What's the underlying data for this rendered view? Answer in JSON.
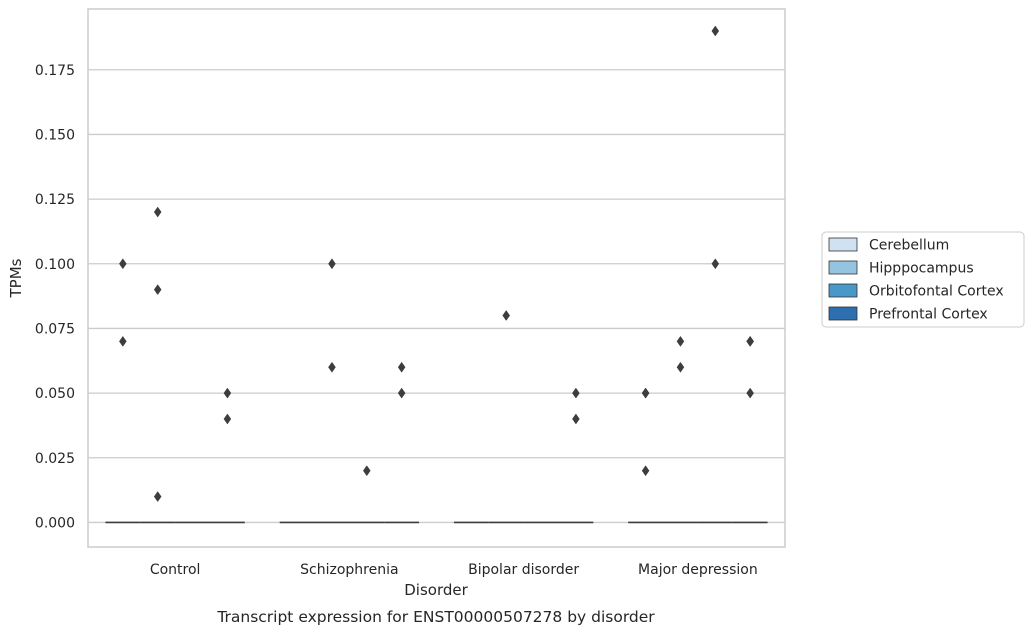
{
  "chart_data": {
    "type": "box",
    "title": "",
    "xlabel": "Disorder",
    "ylabel": "TPMs",
    "caption": "Transcript expression for ENST00000507278 by disorder",
    "categories": [
      "Control",
      "Schizophrenia",
      "Bipolar disorder",
      "Major depression"
    ],
    "ylim": [
      -0.0095,
      0.1985
    ],
    "yticks": [
      "0.000",
      "0.025",
      "0.050",
      "0.075",
      "0.100",
      "0.125",
      "0.150",
      "0.175"
    ],
    "grid": "horizontal",
    "legend_position": "right",
    "series": [
      {
        "name": "Cerebellum",
        "color": "#d0e1f2",
        "median": [
          0,
          0,
          0,
          0
        ],
        "outliers": [
          [
            0.07,
            0.1
          ],
          [],
          [],
          [
            0.02,
            0.05,
            0.05
          ]
        ]
      },
      {
        "name": "Hipppocampus",
        "color": "#94c4df",
        "median": [
          0,
          0,
          0,
          0
        ],
        "outliers": [
          [
            0.12,
            0.09,
            0.01
          ],
          [
            0.1,
            0.06
          ],
          [
            0.08
          ],
          [
            0.06,
            0.07
          ]
        ]
      },
      {
        "name": "Orbitofontal Cortex",
        "color": "#4a98c9",
        "median": [
          0,
          0,
          0,
          0
        ],
        "outliers": [
          [],
          [
            0.02
          ],
          [],
          [
            0.19,
            0.1
          ]
        ]
      },
      {
        "name": "Prefrontal Cortex",
        "color": "#2e6fb0",
        "median": [
          0,
          0,
          0,
          0
        ],
        "outliers": [
          [
            0.05,
            0.04
          ],
          [
            0.06,
            0.05
          ],
          [
            0.05,
            0.04
          ],
          [
            0.07,
            0.07,
            0.05
          ]
        ]
      }
    ]
  }
}
